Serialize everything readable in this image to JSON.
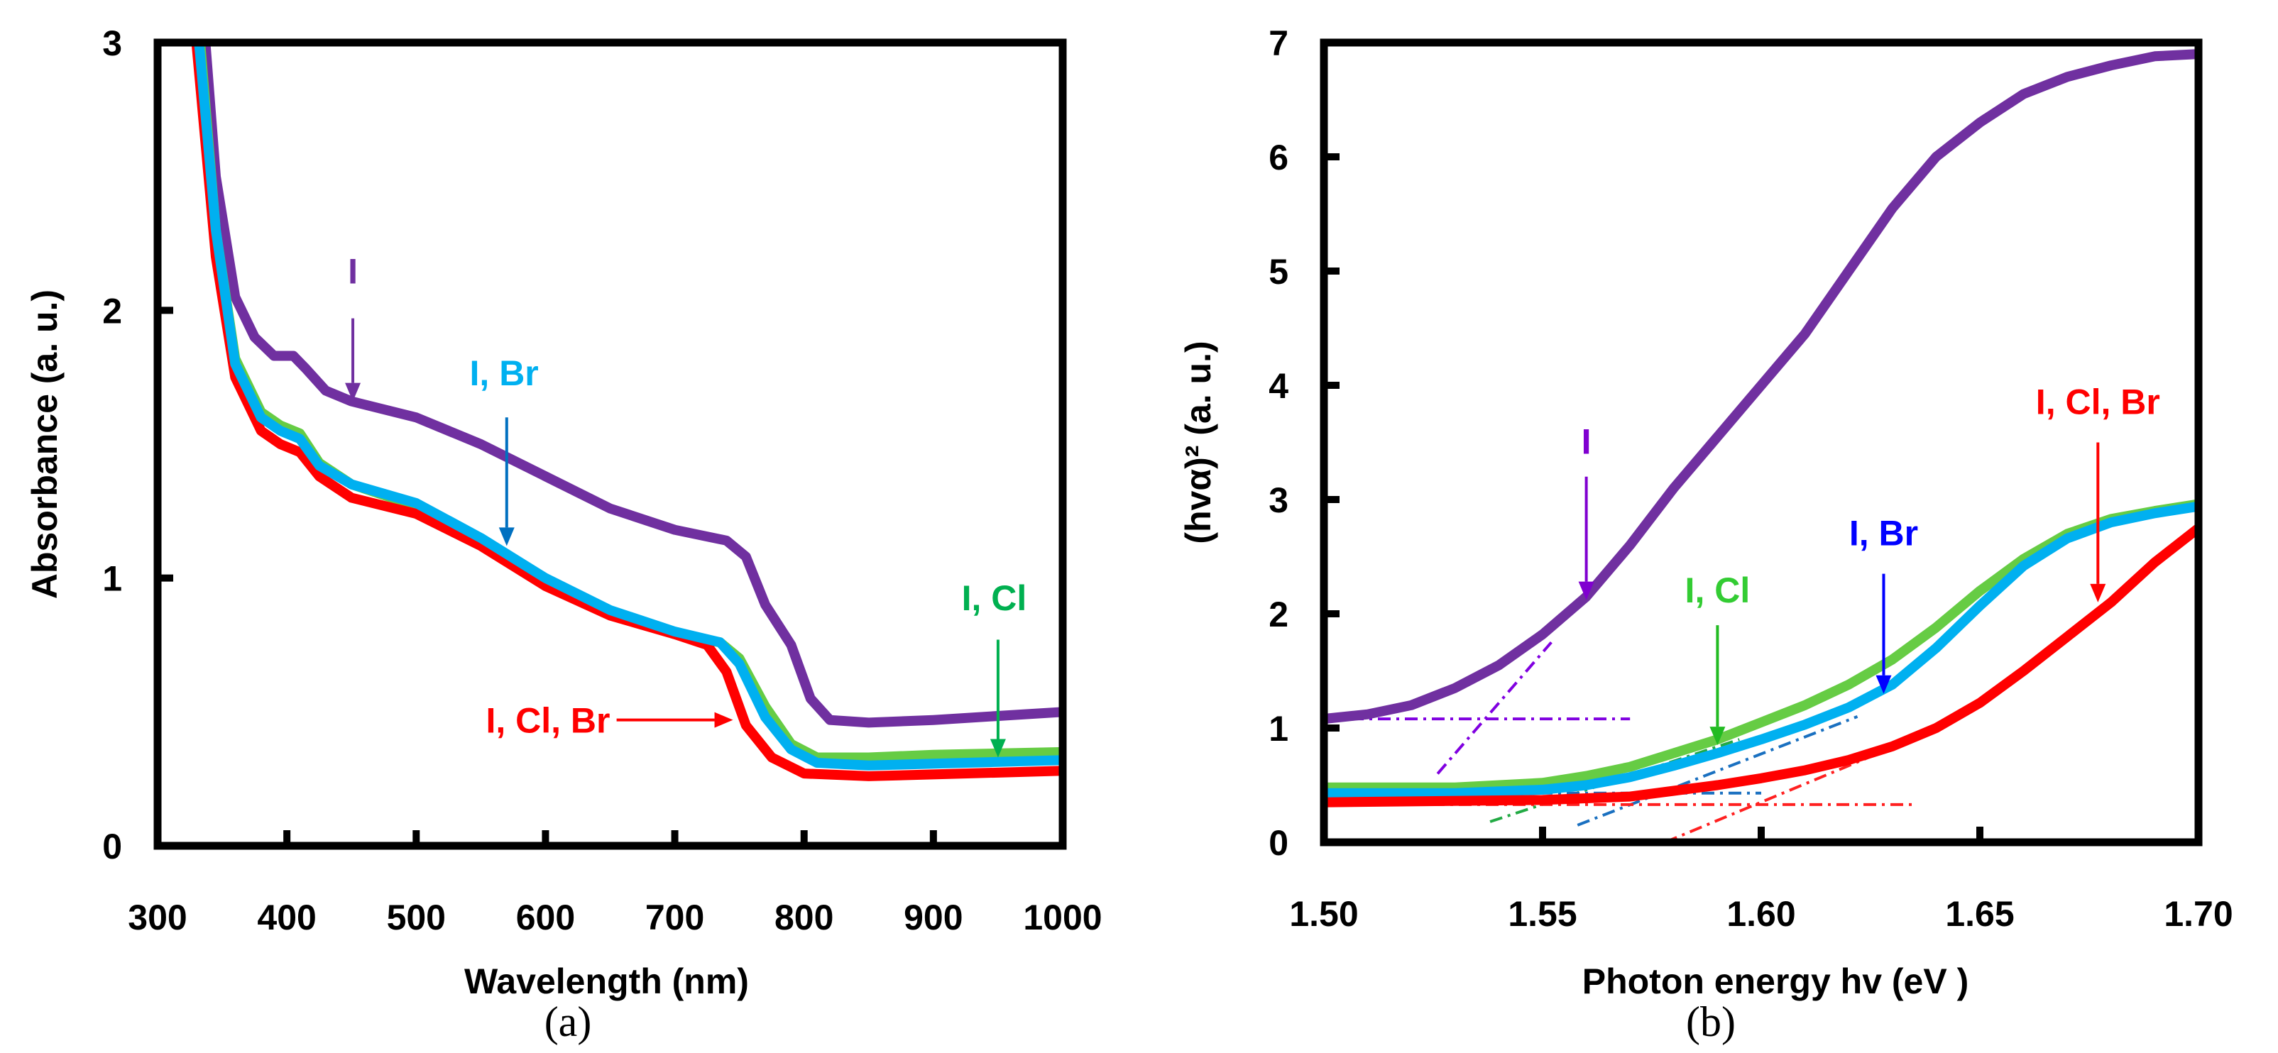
{
  "chart_data": [
    {
      "type": "line",
      "caption": "(a)",
      "xlabel": "Wavelength (nm)",
      "ylabel": "Absorbance (a. u.)",
      "xlim": [
        300,
        1000
      ],
      "ylim": [
        0,
        3
      ],
      "xticks": [
        "300",
        "400",
        "500",
        "600",
        "700",
        "800",
        "900",
        "1000"
      ],
      "xtick_values": [
        300,
        400,
        500,
        600,
        700,
        800,
        900,
        1000
      ],
      "yticks": [
        "0",
        "1",
        "2",
        "3"
      ],
      "ytick_values": [
        0,
        1,
        2,
        3
      ],
      "grid": false,
      "series": [
        {
          "name": "I",
          "color": "#7030a0",
          "x": [
            337,
            345,
            360,
            375,
            390,
            405,
            415,
            430,
            450,
            500,
            550,
            600,
            650,
            700,
            740,
            755,
            770,
            790,
            805,
            820,
            850,
            900,
            1000
          ],
          "y": [
            3,
            2.5,
            2.05,
            1.9,
            1.83,
            1.83,
            1.78,
            1.7,
            1.66,
            1.6,
            1.5,
            1.38,
            1.26,
            1.18,
            1.14,
            1.08,
            0.9,
            0.75,
            0.55,
            0.47,
            0.46,
            0.47,
            0.5
          ]
        },
        {
          "name": "I, Cl",
          "color": "#66cc44",
          "x": [
            333,
            345,
            360,
            380,
            395,
            410,
            425,
            450,
            500,
            550,
            600,
            650,
            700,
            735,
            750,
            770,
            790,
            810,
            850,
            900,
            1000
          ],
          "y": [
            3,
            2.3,
            1.82,
            1.62,
            1.57,
            1.54,
            1.43,
            1.35,
            1.27,
            1.14,
            0.99,
            0.87,
            0.79,
            0.76,
            0.7,
            0.52,
            0.38,
            0.33,
            0.33,
            0.34,
            0.35
          ]
        },
        {
          "name": "I, Cl, Br",
          "color": "#ff0000",
          "x": [
            330,
            345,
            360,
            380,
            395,
            410,
            425,
            450,
            500,
            550,
            600,
            650,
            700,
            725,
            740,
            755,
            775,
            800,
            850,
            1000
          ],
          "y": [
            3,
            2.2,
            1.75,
            1.55,
            1.5,
            1.47,
            1.38,
            1.3,
            1.24,
            1.12,
            0.97,
            0.86,
            0.79,
            0.75,
            0.65,
            0.45,
            0.33,
            0.27,
            0.26,
            0.28
          ]
        },
        {
          "name": "I, Br",
          "color": "#00b0f0",
          "x": [
            332,
            345,
            360,
            380,
            395,
            410,
            425,
            450,
            500,
            550,
            600,
            650,
            700,
            735,
            750,
            770,
            790,
            810,
            850,
            1000
          ],
          "y": [
            3,
            2.3,
            1.8,
            1.6,
            1.55,
            1.52,
            1.42,
            1.35,
            1.28,
            1.15,
            1.0,
            0.88,
            0.8,
            0.76,
            0.68,
            0.48,
            0.36,
            0.31,
            0.3,
            0.32
          ]
        }
      ],
      "annotations": [
        {
          "text": "I",
          "color": "#7030a0",
          "label_at": [
            451,
            2.1
          ],
          "arrow_from": [
            451,
            1.97
          ],
          "arrow_to": [
            451,
            1.66
          ]
        },
        {
          "text": "I, Br",
          "color": "#00b0f0",
          "arrow_color": "#0070c0",
          "label_at": [
            568,
            1.72
          ],
          "arrow_from": [
            570,
            1.6
          ],
          "arrow_to": [
            570,
            1.12
          ]
        },
        {
          "text": "I, Cl",
          "color": "#00b050",
          "label_at": [
            947,
            0.88
          ],
          "arrow_from": [
            950,
            0.77
          ],
          "arrow_to": [
            950,
            0.33
          ]
        },
        {
          "text": "I, Cl, Br",
          "color": "#ff0000",
          "label_at": [
            650,
            0.47
          ],
          "label_anchor": "end",
          "arrow_from": [
            655,
            0.47
          ],
          "arrow_to": [
            745,
            0.47
          ]
        }
      ]
    },
    {
      "type": "line",
      "caption": "(b)",
      "xlabel": "Photon energy hv (eV )",
      "ylabel": "(hvα)² (a. u.)",
      "xlim": [
        1.5,
        1.7
      ],
      "ylim": [
        0,
        7
      ],
      "xticks": [
        "1.50",
        "1.55",
        "1.60",
        "1.65",
        "1.70"
      ],
      "xtick_values": [
        1.5,
        1.55,
        1.6,
        1.65,
        1.7
      ],
      "yticks": [
        "0",
        "1",
        "2",
        "3",
        "4",
        "5",
        "6",
        "7"
      ],
      "ytick_values": [
        0,
        1,
        2,
        3,
        4,
        5,
        6,
        7
      ],
      "grid": false,
      "series": [
        {
          "name": "I",
          "color": "#7030a0",
          "x": [
            1.5,
            1.51,
            1.52,
            1.53,
            1.54,
            1.55,
            1.56,
            1.57,
            1.58,
            1.59,
            1.6,
            1.61,
            1.62,
            1.63,
            1.64,
            1.65,
            1.66,
            1.67,
            1.68,
            1.69,
            1.7
          ],
          "y": [
            1.08,
            1.12,
            1.2,
            1.35,
            1.55,
            1.82,
            2.15,
            2.6,
            3.1,
            3.55,
            4.0,
            4.45,
            5.0,
            5.55,
            6.0,
            6.3,
            6.55,
            6.7,
            6.8,
            6.88,
            6.9
          ]
        },
        {
          "name": "I, Cl",
          "color": "#66cc44",
          "x": [
            1.5,
            1.53,
            1.55,
            1.56,
            1.57,
            1.58,
            1.59,
            1.6,
            1.61,
            1.62,
            1.63,
            1.64,
            1.65,
            1.66,
            1.67,
            1.68,
            1.69,
            1.7
          ],
          "y": [
            0.48,
            0.48,
            0.52,
            0.58,
            0.66,
            0.78,
            0.9,
            1.05,
            1.2,
            1.38,
            1.6,
            1.88,
            2.2,
            2.48,
            2.7,
            2.83,
            2.9,
            2.96
          ]
        },
        {
          "name": "I, Br",
          "color": "#00b0f0",
          "x": [
            1.5,
            1.53,
            1.55,
            1.56,
            1.57,
            1.58,
            1.59,
            1.6,
            1.61,
            1.62,
            1.63,
            1.64,
            1.65,
            1.66,
            1.67,
            1.68,
            1.69,
            1.7
          ],
          "y": [
            0.43,
            0.43,
            0.46,
            0.5,
            0.57,
            0.67,
            0.78,
            0.9,
            1.03,
            1.18,
            1.38,
            1.7,
            2.07,
            2.42,
            2.66,
            2.8,
            2.88,
            2.94
          ]
        },
        {
          "name": "I, Cl, Br",
          "color": "#ff0000",
          "x": [
            1.5,
            1.55,
            1.57,
            1.58,
            1.59,
            1.6,
            1.61,
            1.62,
            1.63,
            1.64,
            1.65,
            1.66,
            1.67,
            1.68,
            1.69,
            1.7
          ],
          "y": [
            0.35,
            0.37,
            0.4,
            0.45,
            0.5,
            0.56,
            0.63,
            0.72,
            0.84,
            1.0,
            1.22,
            1.5,
            1.8,
            2.1,
            2.45,
            2.75
          ]
        }
      ],
      "fit_lines": [
        {
          "series": "I",
          "color": "#8000e0",
          "x": [
            1.5,
            1.57
          ],
          "y": [
            1.08,
            1.08
          ]
        },
        {
          "series": "I",
          "color": "#8000e0",
          "x": [
            1.526,
            1.552
          ],
          "y": [
            0.6,
            1.75
          ]
        },
        {
          "series": "I, Cl",
          "color": "#22aa44",
          "x": [
            1.538,
            1.595
          ],
          "y": [
            0.18,
            0.9
          ]
        },
        {
          "series": "I, Br",
          "color": "#1a70c0",
          "x": [
            1.558,
            1.622
          ],
          "y": [
            0.15,
            1.1
          ]
        },
        {
          "series": "I, Br",
          "color": "#1a70c0",
          "x": [
            1.5,
            1.6
          ],
          "y": [
            0.43,
            0.43
          ]
        },
        {
          "series": "I, Cl, Br",
          "color": "#ff2020",
          "x": [
            1.5,
            1.635
          ],
          "y": [
            0.33,
            0.33
          ]
        },
        {
          "series": "I, Cl, Br",
          "color": "#ff2020",
          "x": [
            1.578,
            1.625
          ],
          "y": [
            0.0,
            0.75
          ]
        }
      ],
      "annotations": [
        {
          "text": "I",
          "color": "#8000d0",
          "label_at": [
            1.56,
            3.4
          ],
          "arrow_from": [
            1.56,
            3.2
          ],
          "arrow_to": [
            1.56,
            2.12
          ]
        },
        {
          "text": "I, Cl",
          "color": "#33cc33",
          "arrow_color": "#22bb22",
          "label_at": [
            1.59,
            2.1
          ],
          "arrow_from": [
            1.59,
            1.9
          ],
          "arrow_to": [
            1.59,
            0.85
          ]
        },
        {
          "text": "I, Br",
          "color": "#0000ff",
          "label_at": [
            1.628,
            2.6
          ],
          "arrow_from": [
            1.628,
            2.35
          ],
          "arrow_to": [
            1.628,
            1.3
          ]
        },
        {
          "text": "I, Cl, Br",
          "color": "#ff0000",
          "label_at": [
            1.677,
            3.75
          ],
          "arrow_from": [
            1.677,
            3.5
          ],
          "arrow_to": [
            1.677,
            2.1
          ]
        }
      ]
    }
  ]
}
